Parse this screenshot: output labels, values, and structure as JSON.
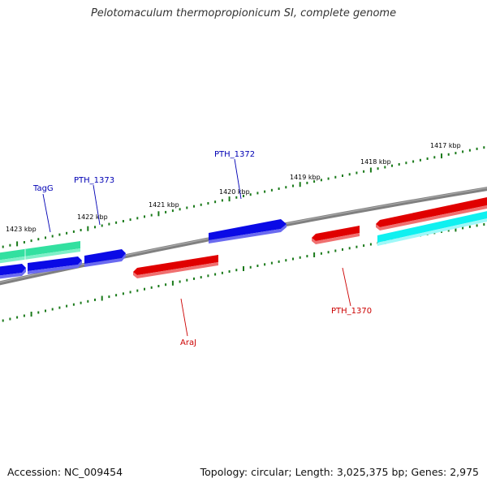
{
  "title": "Pelotomaculum thermopropionicum SI, complete genome",
  "accession": "Accession: NC_009454",
  "summary": "Topology: circular; Length: 3,025,375 bp; Genes: 2,975",
  "colors": {
    "backbone": "#808080",
    "tick": "#1a7a1a",
    "blue_gene": "#0a0ae6",
    "red_gene": "#e00000",
    "green_gene": "#33e0a0",
    "cyan_gene": "#10f0f0",
    "blue_label": "#0000b4",
    "red_label": "#cc0000"
  },
  "scale_labels": [
    {
      "name": "1423 kbp"
    },
    {
      "name": "1422 kbp"
    },
    {
      "name": "1421 kbp"
    },
    {
      "name": "1420 kbp"
    },
    {
      "name": "1419 kbp"
    },
    {
      "name": "1418 kbp"
    },
    {
      "name": "1417 kbp"
    }
  ],
  "gene_labels": [
    {
      "name": "TagG",
      "color": "blue"
    },
    {
      "name": "PTH_1373",
      "color": "blue"
    },
    {
      "name": "PTH_1372",
      "color": "blue"
    },
    {
      "name": "AraJ",
      "color": "red"
    },
    {
      "name": "PTH_1370",
      "color": "red"
    }
  ],
  "genes": [
    {
      "id": "green-gene",
      "color": "green"
    },
    {
      "id": "blue-gene-left-edge",
      "color": "blue"
    },
    {
      "id": "blue-gene-tagg",
      "color": "blue"
    },
    {
      "id": "blue-gene-pth1373",
      "color": "blue"
    },
    {
      "id": "red-gene-araj",
      "color": "red"
    },
    {
      "id": "blue-gene-pth1372",
      "color": "blue"
    },
    {
      "id": "red-gene-pth1370",
      "color": "red"
    },
    {
      "id": "red-gene-right-edge",
      "color": "red"
    },
    {
      "id": "cyan-gene-right-edge",
      "color": "cyan"
    }
  ]
}
